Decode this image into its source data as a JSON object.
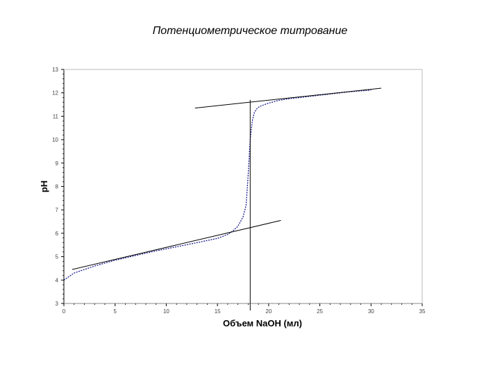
{
  "chart_data": {
    "type": "line",
    "title": "Потенциометрическое титрование",
    "xlabel": "Объем NaOH (мл)",
    "ylabel": "pH",
    "xlim": [
      0,
      35
    ],
    "ylim": [
      3,
      13
    ],
    "x_ticks": [
      0,
      5,
      10,
      15,
      20,
      25,
      30,
      35
    ],
    "y_ticks": [
      3,
      4,
      5,
      6,
      7,
      8,
      9,
      10,
      11,
      12,
      13
    ],
    "grid": false,
    "series": [
      {
        "style": "dotted",
        "color": "#1a1a8c",
        "x": [
          0,
          0.5,
          1,
          2,
          3,
          5,
          7,
          9,
          11,
          13,
          15,
          16,
          16.5,
          17,
          17.5,
          17.8,
          18.0,
          18.2,
          18.4,
          18.6,
          18.8,
          19.0,
          19.3,
          19.6,
          20,
          20.5,
          21,
          22,
          24,
          26,
          28,
          30
        ],
        "y": [
          4.0,
          4.15,
          4.3,
          4.45,
          4.6,
          4.85,
          5.05,
          5.25,
          5.42,
          5.6,
          5.78,
          5.95,
          6.1,
          6.3,
          6.7,
          7.2,
          8.5,
          10.0,
          10.8,
          11.15,
          11.3,
          11.38,
          11.45,
          11.5,
          11.56,
          11.62,
          11.68,
          11.75,
          11.85,
          11.95,
          12.05,
          12.12
        ]
      },
      {
        "style": "solid",
        "color": "#000000",
        "x": [
          0.8,
          21.2
        ],
        "y": [
          4.45,
          6.55
        ]
      },
      {
        "style": "solid",
        "color": "#000000",
        "x": [
          12.8,
          31.0
        ],
        "y": [
          11.35,
          12.2
        ]
      },
      {
        "style": "solid",
        "color": "#000000",
        "x": [
          18.2,
          18.2
        ],
        "y": [
          2.7,
          11.7
        ]
      }
    ]
  }
}
